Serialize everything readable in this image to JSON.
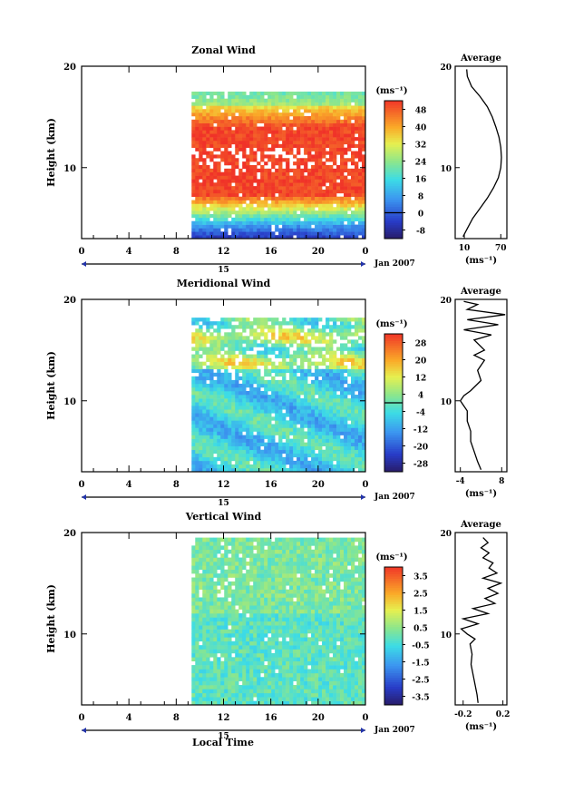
{
  "figure": {
    "xlabel": "Local Time"
  },
  "chart_data": [
    {
      "type": "heatmap",
      "title": "Zonal Wind",
      "ylabel": "Height (km)",
      "ylim": [
        3,
        20
      ],
      "y_ticks": [
        "20",
        "10"
      ],
      "y_tick_values": [
        20,
        10
      ],
      "xlim": [
        0,
        24
      ],
      "x_ticks": [
        "0",
        "4",
        "8",
        "12",
        "16",
        "20",
        "0"
      ],
      "x_tick_values": [
        0,
        4,
        8,
        12,
        16,
        20,
        24
      ],
      "date_label": "15",
      "date_suffix": "Jan 2007",
      "data_start_hour": 9.3,
      "data_top_km": 17.5,
      "colorbar": {
        "unit_label": "(ms⁻¹)",
        "labels": [
          "48",
          "40",
          "32",
          "24",
          "16",
          "8",
          "0",
          "-8"
        ],
        "values": [
          48,
          40,
          32,
          24,
          16,
          8,
          0,
          -8
        ],
        "min": -12,
        "max": 52,
        "zero_line": 0
      },
      "profile": {
        "title": "Average",
        "x_ticks": [
          "10",
          "70"
        ],
        "x_tick_values": [
          10,
          70
        ],
        "xlim": [
          -5,
          80
        ],
        "unit_label": "(ms⁻¹)",
        "y_ticks": [
          "20",
          "10"
        ],
        "heights": [
          3.2,
          4,
          5,
          6,
          7,
          8,
          9,
          10,
          11,
          12,
          13,
          14,
          15,
          16,
          17,
          18,
          19,
          19.7
        ],
        "values": [
          8,
          15,
          24,
          36,
          48,
          58,
          66,
          70,
          71,
          70,
          67,
          62,
          56,
          48,
          36,
          22,
          15,
          14
        ]
      }
    },
    {
      "type": "heatmap",
      "title": "Meridional Wind",
      "ylabel": "Height (km)",
      "ylim": [
        3,
        20
      ],
      "y_ticks": [
        "20",
        "10"
      ],
      "y_tick_values": [
        20,
        10
      ],
      "xlim": [
        0,
        24
      ],
      "x_ticks": [
        "0",
        "4",
        "8",
        "12",
        "16",
        "20",
        "0"
      ],
      "x_tick_values": [
        0,
        4,
        8,
        12,
        16,
        20,
        24
      ],
      "date_label": "15",
      "date_suffix": "Jan 2007",
      "data_start_hour": 9.3,
      "data_top_km": 18.2,
      "colorbar": {
        "unit_label": "(ms⁻¹)",
        "labels": [
          "28",
          "20",
          "12",
          "4",
          "-4",
          "-12",
          "-20",
          "-28"
        ],
        "values": [
          28,
          20,
          12,
          4,
          -4,
          -12,
          -20,
          -28
        ],
        "min": -32,
        "max": 32,
        "zero_line": 0
      },
      "profile": {
        "title": "Average",
        "x_ticks": [
          "-4",
          "8"
        ],
        "x_tick_values": [
          -4,
          8
        ],
        "xlim": [
          -5.5,
          9.5
        ],
        "unit_label": "(ms⁻¹)",
        "y_ticks": [
          "20",
          "10"
        ],
        "heights": [
          3.2,
          4,
          5,
          6,
          7,
          8,
          9,
          9.5,
          10,
          10.5,
          11,
          12,
          13,
          14,
          14.5,
          15,
          16,
          16.5,
          17,
          17.5,
          18,
          18.5,
          19,
          19.5,
          19.8
        ],
        "values": [
          2,
          1,
          0,
          -1,
          -1,
          -2,
          -2,
          -3,
          -4,
          -3,
          -1,
          2,
          1,
          3,
          0,
          3,
          0,
          5,
          -3,
          7,
          -2,
          9,
          -2,
          1,
          -3
        ]
      }
    },
    {
      "type": "heatmap",
      "title": "Vertical Wind",
      "ylabel": "Height (km)",
      "ylim": [
        3,
        20
      ],
      "y_ticks": [
        "20",
        "10"
      ],
      "y_tick_values": [
        20,
        10
      ],
      "xlim": [
        0,
        24
      ],
      "x_ticks": [
        "0",
        "4",
        "8",
        "12",
        "16",
        "20",
        "0"
      ],
      "x_tick_values": [
        0,
        4,
        8,
        12,
        16,
        20,
        24
      ],
      "date_label": "15",
      "date_suffix": "Jan 2007",
      "data_start_hour": 9.3,
      "data_top_km": 19.5,
      "colorbar": {
        "unit_label": "(ms⁻¹)",
        "labels": [
          "3.5",
          "2.5",
          "1.5",
          "0.5",
          "-0.5",
          "-1.5",
          "-2.5",
          "-3.5"
        ],
        "values": [
          3.5,
          2.5,
          1.5,
          0.5,
          -0.5,
          -1.5,
          -2.5,
          -3.5
        ],
        "min": -4,
        "max": 4
      },
      "profile": {
        "title": "Average",
        "x_ticks": [
          "-0.2",
          "0.2"
        ],
        "x_tick_values": [
          -0.2,
          0.2
        ],
        "xlim": [
          -0.28,
          0.24
        ],
        "unit_label": "(ms⁻¹)",
        "y_ticks": [
          "20",
          "10"
        ],
        "heights": [
          3.2,
          4,
          5,
          6,
          7,
          8,
          9,
          9.5,
          10,
          10.5,
          11,
          11.5,
          12,
          12.5,
          13,
          13.5,
          14,
          14.5,
          15,
          15.5,
          16,
          16.5,
          17,
          17.5,
          18,
          18.5,
          19,
          19.5
        ],
        "values": [
          -0.05,
          -0.06,
          -0.08,
          -0.1,
          -0.12,
          -0.11,
          -0.13,
          -0.08,
          -0.16,
          -0.22,
          -0.05,
          -0.2,
          0.05,
          -0.1,
          0.12,
          0.02,
          0.15,
          0.05,
          0.18,
          0.0,
          0.14,
          0.06,
          0.1,
          0.0,
          0.06,
          -0.02,
          0.05,
          0.0
        ]
      }
    }
  ]
}
